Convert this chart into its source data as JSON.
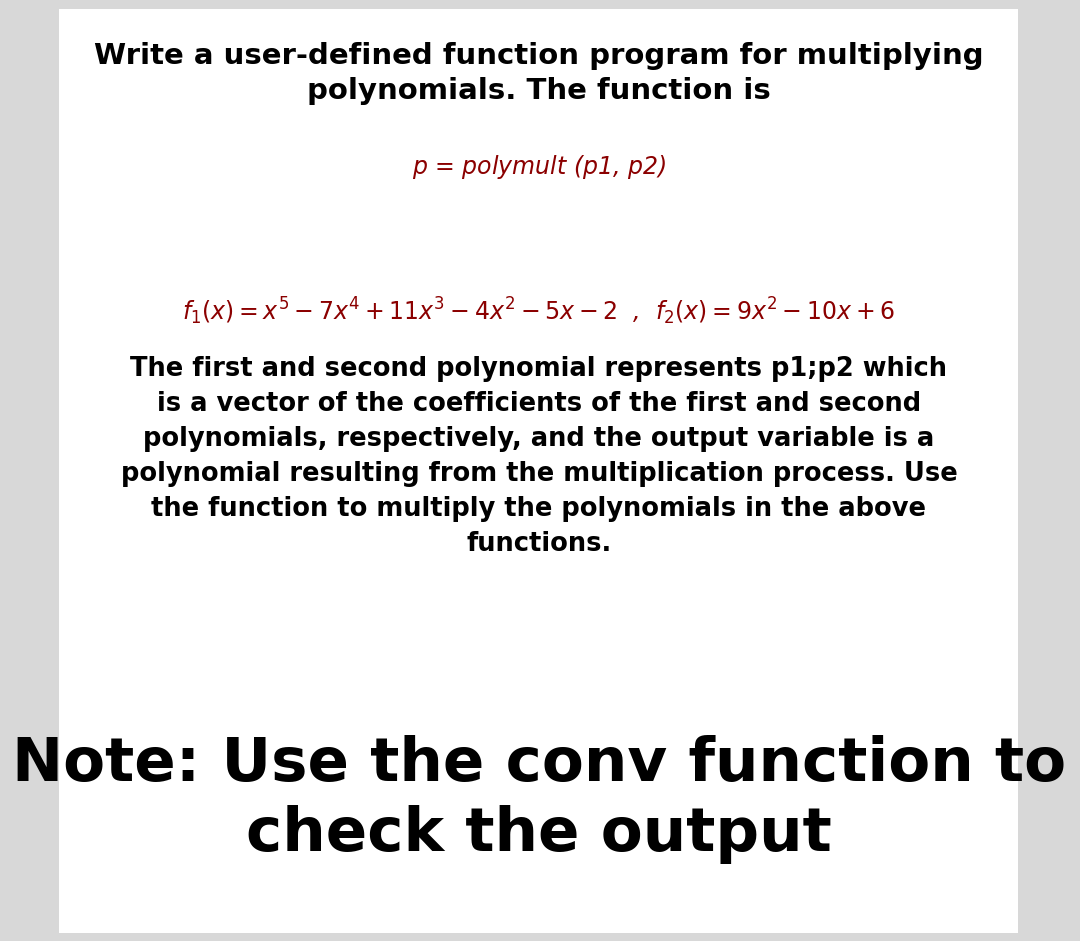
{
  "bg_color": "#d8d8d8",
  "card_color": "#ffffff",
  "title_text": "Write a user-defined function program for multiplying\npolynomials. The function is",
  "title_fontsize": 21,
  "title_color": "#000000",
  "function_text": "$p$ = $polymult$ (p1, p2)",
  "function_fontsize": 17,
  "function_color": "#8B0000",
  "poly_text": "$f_1(x) = x^5 - 7x^4 + 11x^3 - 4x^2 - 5x - 2$  ,  $f_2(x) = 9x^2 - 10x + 6$",
  "poly_fontsize": 17,
  "poly_color": "#8B0000",
  "desc_text": "The first and second polynomial represents p1;p2 which\nis a vector of the coefficients of the first and second\npolynomials, respectively, and the output variable is a\npolynomial resulting from the multiplication process. Use\nthe function to multiply the polynomials in the above\nfunctions.",
  "desc_fontsize": 18.5,
  "desc_color": "#000000",
  "note_text": "Note: Use the conv function to\ncheck the output",
  "note_fontsize": 44,
  "note_color": "#000000"
}
